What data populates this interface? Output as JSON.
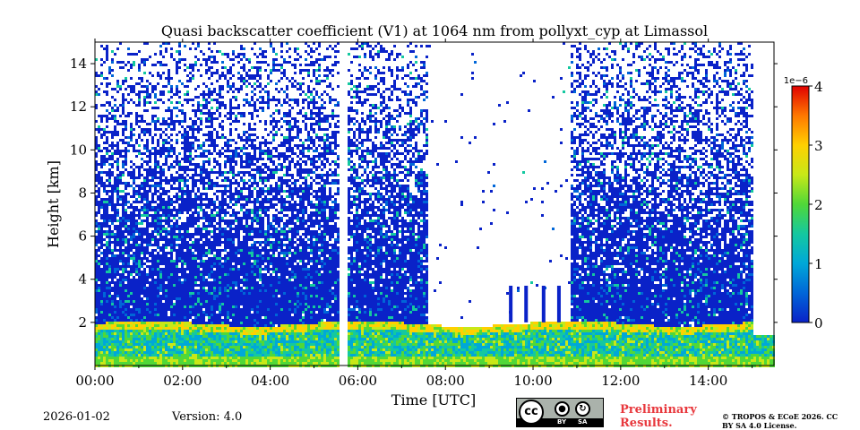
{
  "chart_data": {
    "type": "heatmap",
    "title": "Quasi backscatter coefficient (V1) at 1064 nm from pollyxt_cyp at Limassol",
    "xlabel": "Time [UTC]",
    "ylabel": "Height [km]",
    "xlim_hours": [
      0,
      15.5
    ],
    "ylim_km": [
      0,
      15
    ],
    "x_ticks": [
      {
        "value": 0,
        "label": "00:00"
      },
      {
        "value": 2,
        "label": "02:00"
      },
      {
        "value": 4,
        "label": "04:00"
      },
      {
        "value": 6,
        "label": "06:00"
      },
      {
        "value": 8,
        "label": "08:00"
      },
      {
        "value": 10,
        "label": "10:00"
      },
      {
        "value": 12,
        "label": "12:00"
      },
      {
        "value": 14,
        "label": "14:00"
      }
    ],
    "y_ticks": [
      {
        "value": 2,
        "label": "2"
      },
      {
        "value": 4,
        "label": "4"
      },
      {
        "value": 6,
        "label": "6"
      },
      {
        "value": 8,
        "label": "8"
      },
      {
        "value": 10,
        "label": "10"
      },
      {
        "value": 12,
        "label": "12"
      },
      {
        "value": 14,
        "label": "14"
      }
    ],
    "colorbar": {
      "range": [
        0,
        4
      ],
      "multiplier": "1e−6",
      "ticks": [
        {
          "value": 0,
          "label": "0"
        },
        {
          "value": 1,
          "label": "1"
        },
        {
          "value": 2,
          "label": "2"
        },
        {
          "value": 3,
          "label": "3"
        },
        {
          "value": 4,
          "label": "4"
        }
      ],
      "colors": [
        "#0a22c8",
        "#0066d8",
        "#00a8d8",
        "#14c8a0",
        "#50d838",
        "#c8e818",
        "#ffd000",
        "#ff7800",
        "#e00000"
      ]
    },
    "features": {
      "boundary_layer_top_km": 2.0,
      "data_gap_hours": [
        5.55,
        5.72
      ],
      "high_noise_cleared_hours": [
        7.6,
        10.8
      ],
      "data_end_hour": 15.0,
      "cloud_free_columns_hours": [
        9.45,
        9.8,
        10.2,
        10.55
      ]
    }
  },
  "footer": {
    "date": "2026-01-02",
    "version": "Version: 4.0",
    "preliminary": "Preliminary Results.",
    "copyright": "© TROPOS & ECoE 2026. CC BY SA 4.0 License.",
    "license_badge": {
      "cc": "cc",
      "by": "BY",
      "sa": "SA"
    }
  }
}
